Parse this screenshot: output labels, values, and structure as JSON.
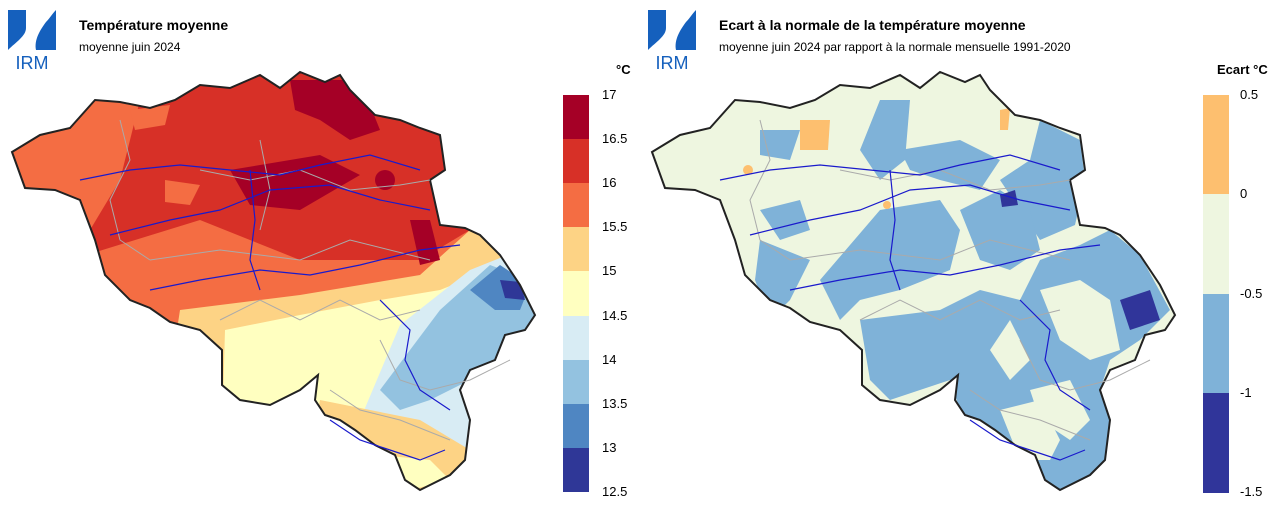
{
  "left": {
    "logo_text": "IRM",
    "title": "Température moyenne",
    "subtitle": "moyenne juin 2024",
    "unit": "°C",
    "legend_colors": [
      "#a50026",
      "#d73027",
      "#f46d43",
      "#fdae61",
      "#fee090",
      "#ffffbf",
      "#e0f3f8",
      "#abd9e9",
      "#74add1",
      "#4575b4",
      "#313695"
    ],
    "legend_ticks": [
      "17",
      "16.5",
      "16",
      "15.5",
      "15",
      "14.5",
      "14",
      "13.5",
      "13",
      "12.5"
    ],
    "classes": [
      {
        "from": 16.5,
        "to": 17,
        "color": "#a50026"
      },
      {
        "from": 16,
        "to": 16.5,
        "color": "#d73027"
      },
      {
        "from": 15.5,
        "to": 16,
        "color": "#f46d43"
      },
      {
        "from": 15,
        "to": 15.5,
        "color": "#fdd385"
      },
      {
        "from": 14.5,
        "to": 15,
        "color": "#ffffc0"
      },
      {
        "from": 14,
        "to": 14.5,
        "color": "#d8ecf4"
      },
      {
        "from": 13.5,
        "to": 14,
        "color": "#93c2e0"
      },
      {
        "from": 13,
        "to": 13.5,
        "color": "#4f86c2"
      },
      {
        "from": 12.5,
        "to": 13,
        "color": "#2f3797"
      }
    ]
  },
  "right": {
    "logo_text": "IRM",
    "title": "Ecart à la normale de la température moyenne",
    "subtitle": "moyenne juin 2024 par rapport à la normale mensuelle 1991-2020",
    "unit": "Ecart °C",
    "legend_ticks": [
      "0.5",
      "0",
      "-0.5",
      "-1",
      "-1.5"
    ],
    "classes": [
      {
        "from": 0,
        "to": 0.5,
        "color": "#fdbf6f"
      },
      {
        "from": -0.5,
        "to": 0,
        "color": "#eef6e0"
      },
      {
        "from": -1,
        "to": -0.5,
        "color": "#7fb2d8"
      },
      {
        "from": -1.5,
        "to": -1,
        "color": "#30359a"
      }
    ]
  }
}
